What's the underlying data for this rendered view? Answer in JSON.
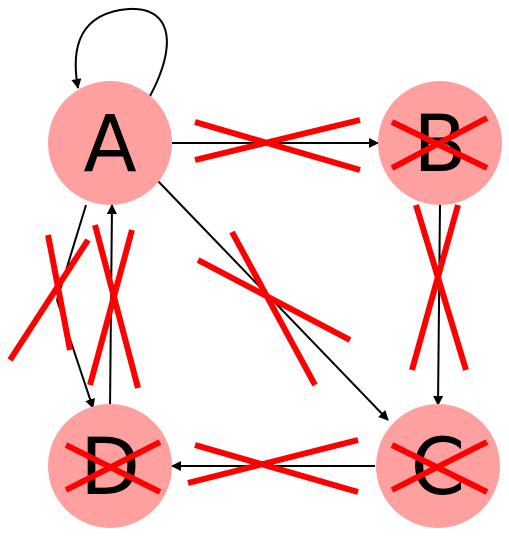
{
  "diagram": {
    "type": "directed-graph",
    "colors": {
      "node_fill": "#ffa0a0",
      "edge": "#000000",
      "strike": "#ff0000"
    },
    "nodes": [
      {
        "id": "A",
        "label": "A",
        "crossed": false
      },
      {
        "id": "B",
        "label": "B",
        "crossed": true
      },
      {
        "id": "C",
        "label": "C",
        "crossed": true
      },
      {
        "id": "D",
        "label": "D",
        "crossed": true
      }
    ],
    "edges": [
      {
        "from": "A",
        "to": "A",
        "crossed": false
      },
      {
        "from": "A",
        "to": "B",
        "crossed": true
      },
      {
        "from": "A",
        "to": "C",
        "crossed": true
      },
      {
        "from": "A",
        "to": "D",
        "crossed": true
      },
      {
        "from": "D",
        "to": "A",
        "crossed": true
      },
      {
        "from": "B",
        "to": "C",
        "crossed": true
      },
      {
        "from": "C",
        "to": "D",
        "crossed": true
      }
    ]
  }
}
